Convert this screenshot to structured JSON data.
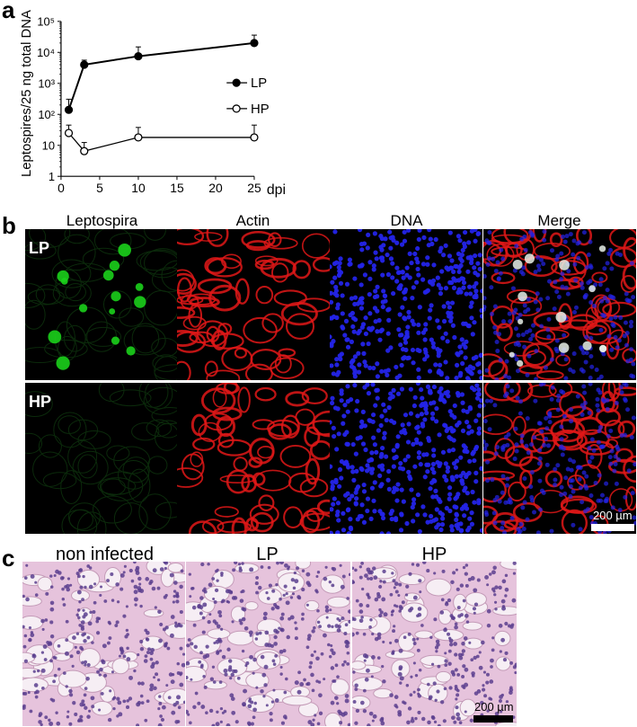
{
  "panels": {
    "a": "a",
    "b": "b",
    "c": "c"
  },
  "chart_data": {
    "type": "line",
    "ylabel": "Leptospires/25 ng total DNA",
    "xlabel": "dpi",
    "y_scale": "log",
    "ylim": [
      1,
      100000
    ],
    "xlim": [
      0,
      25
    ],
    "x_ticks": [
      "0",
      "5",
      "10",
      "15",
      "20",
      "25"
    ],
    "y_ticks": [
      "1",
      "10",
      "10²",
      "10³",
      "10⁴",
      "10⁵"
    ],
    "legend_position": "right",
    "series": [
      {
        "name": "LP",
        "marker": "filled-circle",
        "x": [
          1,
          3,
          10,
          25
        ],
        "values": [
          140,
          4000,
          7500,
          20000
        ]
      },
      {
        "name": "HP",
        "marker": "open-circle",
        "x": [
          1,
          3,
          10,
          25
        ],
        "values": [
          25,
          6.5,
          18,
          18
        ]
      }
    ]
  },
  "panel_b": {
    "columns": [
      "Leptospira",
      "Actin",
      "DNA",
      "Merge"
    ],
    "rows": [
      "LP",
      "HP"
    ],
    "scale_bar": "200 µm",
    "colors": {
      "leptospira": "#1bd01b",
      "actin": "#e01818",
      "dna": "#2424e8"
    }
  },
  "panel_c": {
    "columns": [
      "non infected",
      "LP",
      "HP"
    ],
    "scale_bar": "200 µm",
    "stain_colors": {
      "background": "#e6c3dc",
      "nuclei": "#5a3e8e"
    }
  }
}
